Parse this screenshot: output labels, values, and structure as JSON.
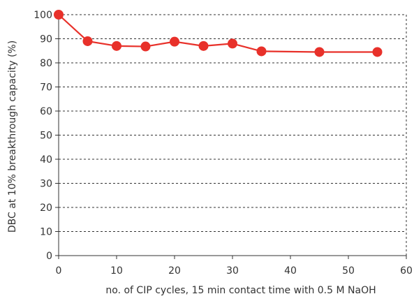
{
  "chart_data": {
    "type": "line",
    "xlabel": "no. of CIP cycles, 15 min contact time with 0.5 M NaOH",
    "ylabel": "DBC at 10% breakthrough capacity (%)",
    "xlim": [
      0,
      60
    ],
    "ylim": [
      0,
      100
    ],
    "x_ticks": [
      0,
      10,
      20,
      30,
      40,
      50,
      60
    ],
    "y_ticks": [
      0,
      10,
      20,
      30,
      40,
      50,
      60,
      70,
      80,
      90,
      100
    ],
    "grid": "horizontal dashed",
    "series": [
      {
        "x": [
          0,
          5,
          10,
          15,
          20,
          25,
          30,
          35,
          45,
          55
        ],
        "y": [
          100,
          89,
          87,
          86.8,
          88.8,
          87,
          88,
          84.8,
          84.5,
          84.5
        ],
        "color": "#e8312a",
        "marker": "circle"
      }
    ]
  }
}
